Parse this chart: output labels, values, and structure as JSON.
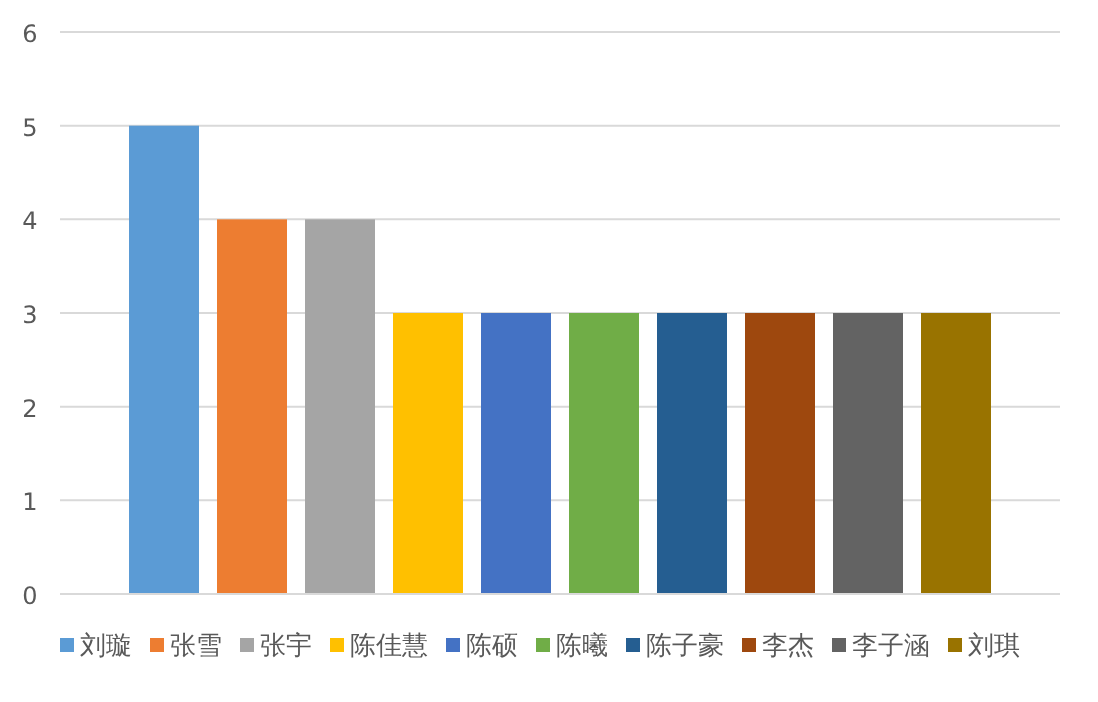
{
  "chart_data": {
    "type": "bar",
    "categories": [
      null
    ],
    "ylim": [
      0,
      6
    ],
    "yticks": [
      0,
      1,
      2,
      3,
      4,
      5,
      6
    ],
    "grid": "y",
    "legend": "bottom",
    "series": [
      {
        "name": "刘璇",
        "color": "#5b9bd5",
        "values": [
          5
        ]
      },
      {
        "name": "张雪",
        "color": "#ed7d31",
        "values": [
          4
        ]
      },
      {
        "name": "张宇",
        "color": "#a5a5a5",
        "values": [
          4
        ]
      },
      {
        "name": "陈佳慧",
        "color": "#ffc000",
        "values": [
          3
        ]
      },
      {
        "name": "陈硕",
        "color": "#4472c4",
        "values": [
          3
        ]
      },
      {
        "name": "陈曦",
        "color": "#70ad47",
        "values": [
          3
        ]
      },
      {
        "name": "陈子豪",
        "color": "#255e91",
        "values": [
          3
        ]
      },
      {
        "name": "李杰",
        "color": "#9e480e",
        "values": [
          3
        ]
      },
      {
        "name": "李子涵",
        "color": "#636363",
        "values": [
          3
        ]
      },
      {
        "name": "刘琪",
        "color": "#997300",
        "values": [
          3
        ]
      }
    ]
  }
}
